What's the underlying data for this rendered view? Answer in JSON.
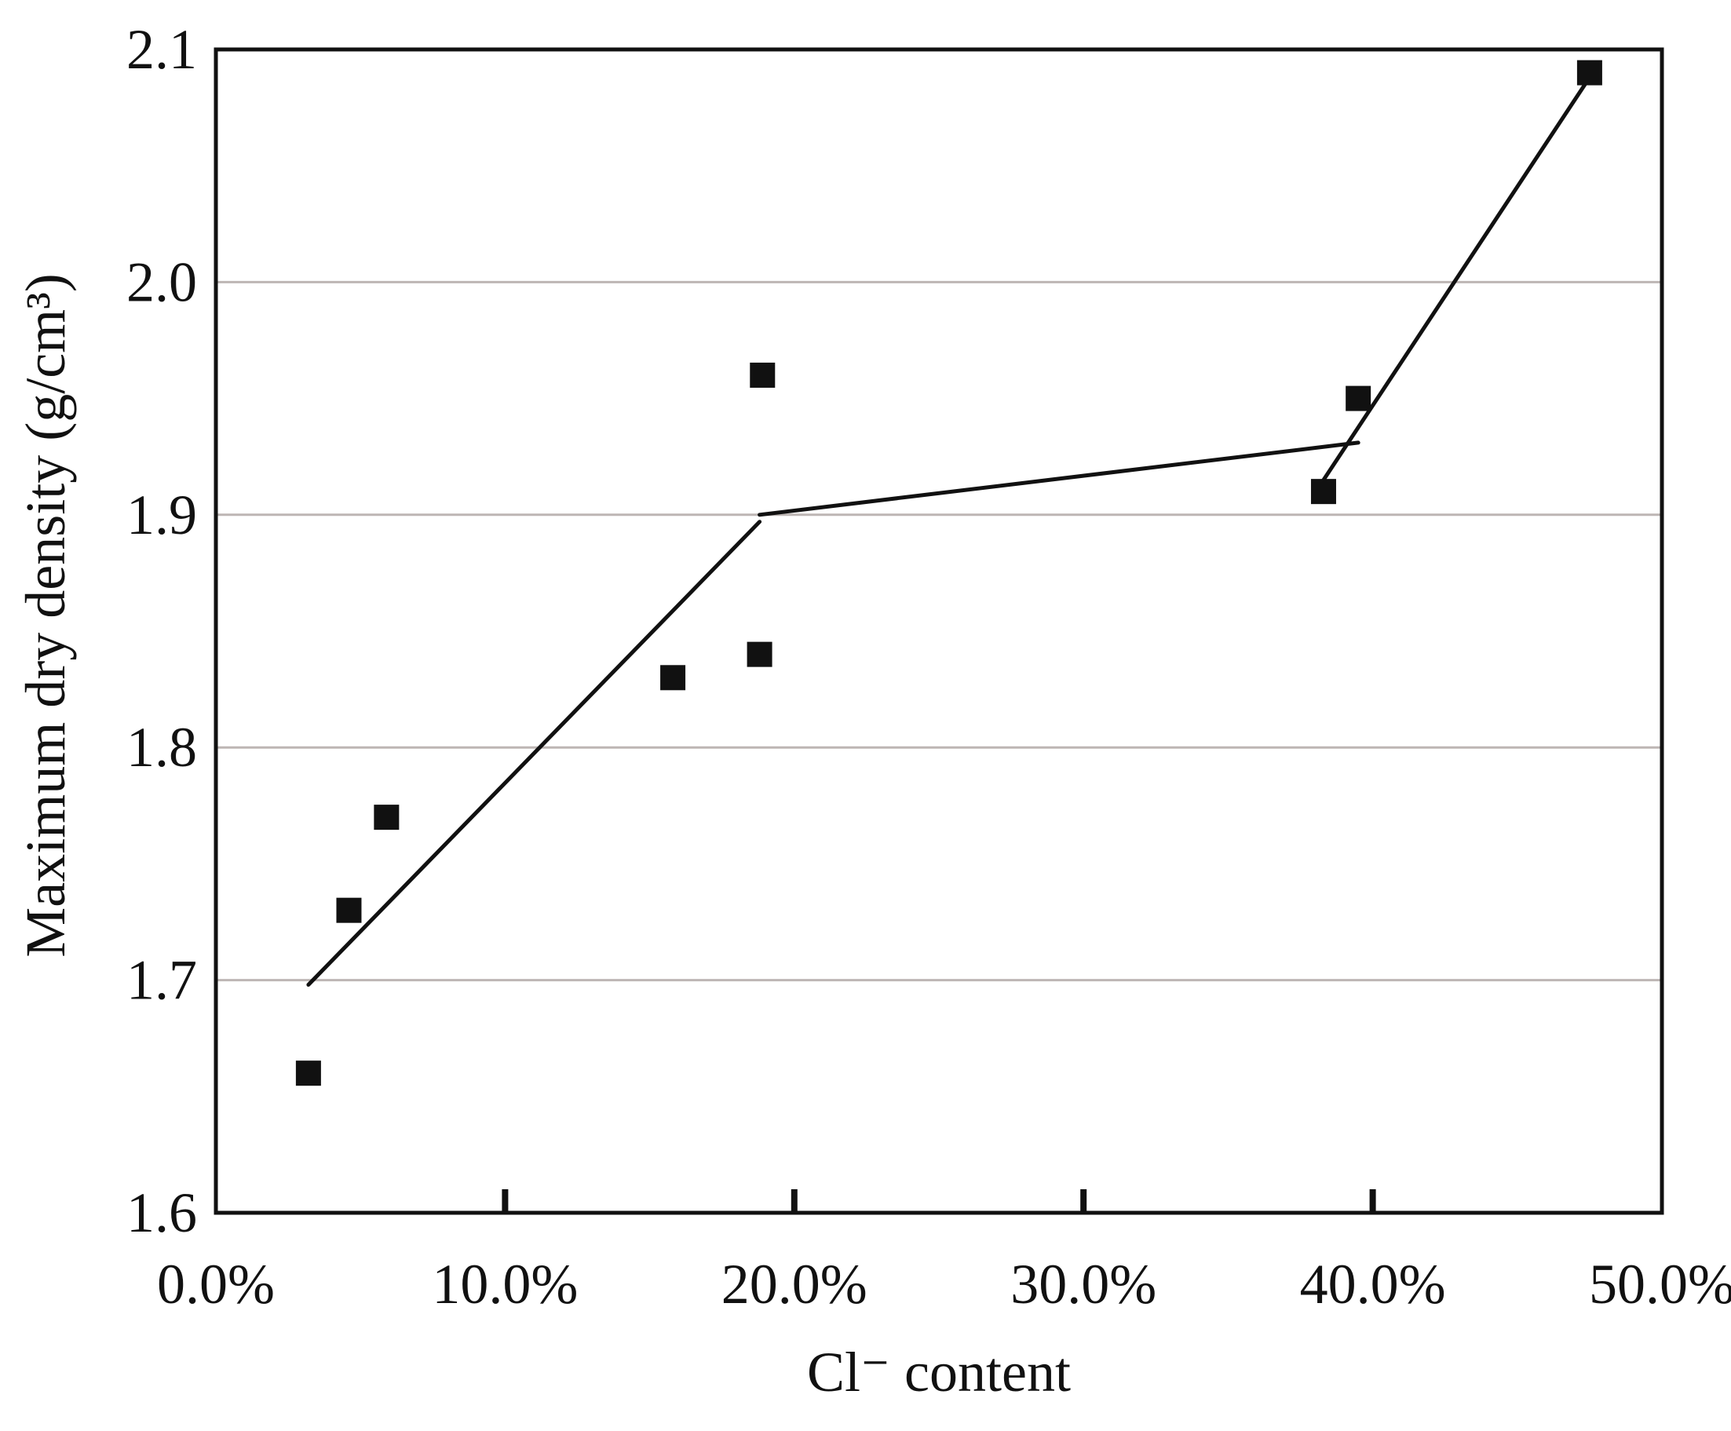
{
  "chart_data": {
    "type": "scatter",
    "title": "",
    "xlabel": "Cl⁻ content",
    "ylabel": "Maximum dry density (g/cm³)",
    "xlim": [
      0,
      50
    ],
    "ylim": [
      1.6,
      2.1
    ],
    "x_ticks": [
      "0.0%",
      "10.0%",
      "20.0%",
      "30.0%",
      "40.0%",
      "50.0%"
    ],
    "y_ticks": [
      "1.6",
      "1.7",
      "1.8",
      "1.9",
      "2.0",
      "2.1"
    ],
    "grid": "horizontal",
    "legend": "none",
    "colors": {
      "marker": "#111111",
      "grid": "#bdb6b4",
      "line": "#111111"
    },
    "series": [
      {
        "kind": "points",
        "marker": "square",
        "x": [
          3.2,
          4.6,
          5.9,
          15.8,
          18.8,
          18.9,
          38.3,
          39.5,
          47.5
        ],
        "y": [
          1.66,
          1.73,
          1.77,
          1.83,
          1.84,
          1.96,
          1.91,
          1.95,
          2.09
        ]
      },
      {
        "kind": "trend-segment",
        "x": [
          3.2,
          18.8
        ],
        "y": [
          1.698,
          1.897
        ]
      },
      {
        "kind": "trend-segment",
        "x": [
          18.8,
          39.5
        ],
        "y": [
          1.9,
          1.931
        ]
      },
      {
        "kind": "trend-segment",
        "x": [
          38.3,
          47.5
        ],
        "y": [
          1.915,
          2.088
        ]
      }
    ]
  }
}
